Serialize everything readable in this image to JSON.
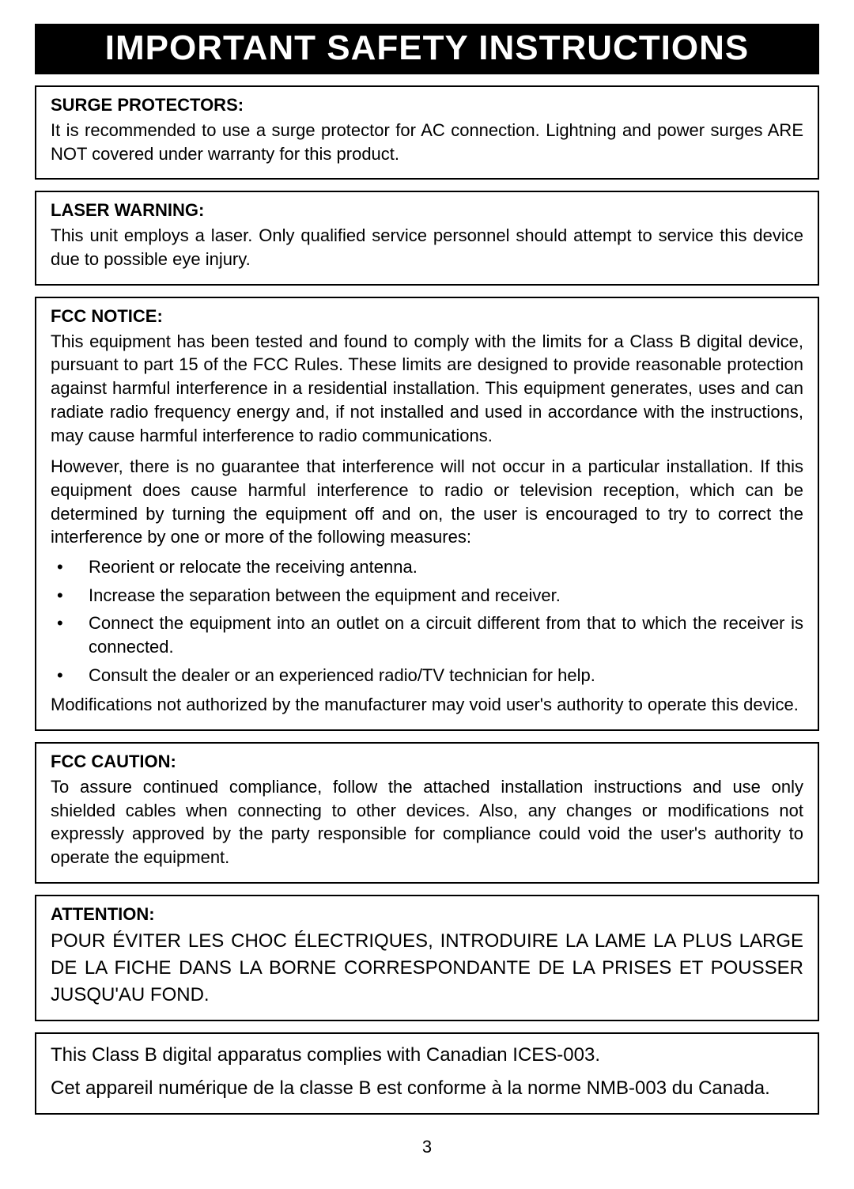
{
  "page": {
    "title": "IMPORTANT SAFETY INSTRUCTIONS",
    "page_number": "3",
    "colors": {
      "title_bg": "#000000",
      "title_fg": "#ffffff",
      "page_bg": "#ffffff",
      "text": "#000000",
      "border": "#000000"
    },
    "typography": {
      "title_fontsize_pt": 33,
      "heading_fontsize_pt": 16,
      "body_fontsize_pt": 16,
      "big_body_fontsize_pt": 18,
      "font_family": "Arial"
    }
  },
  "sections": {
    "surge": {
      "heading": "SURGE PROTECTORS:",
      "body": "It is recommended to use a surge protector for AC connection. Lightning and power surges ARE NOT covered under warranty for this product."
    },
    "laser": {
      "heading": "LASER WARNING:",
      "body": "This unit employs a laser. Only qualified service personnel should attempt to service this device due to possible eye injury."
    },
    "fcc_notice": {
      "heading": "FCC NOTICE:",
      "p1": "This equipment has been tested and found to comply with the limits for a Class B digital device, pursuant to part 15 of the FCC Rules. These limits are designed to provide reasonable protection against harmful interference in a residential installation. This equipment generates, uses and can radiate radio frequency energy and, if not installed and used in accordance with the instructions, may cause harmful interference to radio communications.",
      "p2": "However, there is no guarantee that interference will not occur in a particular installation. If this equipment does cause harmful interference to radio or television reception, which can be determined by turning the equipment off and on, the user is encouraged to try to correct the interference by one or more of the following measures:",
      "measures": [
        "Reorient or relocate the receiving antenna.",
        "Increase the separation between the equipment and receiver.",
        "Connect the equipment into an outlet on a circuit different from that to which the receiver is connected.",
        "Consult the dealer or an experienced radio/TV technician for help."
      ],
      "p3": "Modifications not authorized by the manufacturer may void user's authority to operate this device."
    },
    "fcc_caution": {
      "heading": "FCC CAUTION:",
      "body": "To assure continued compliance, follow the attached installation instructions and use only shielded cables when connecting to other devices. Also, any changes or modifications not expressly approved by the party responsible for compliance could void the user's authority to operate the equipment."
    },
    "attention_fr": {
      "heading": "ATTENTION:",
      "body": "POUR ÉVITER LES CHOC ÉLECTRIQUES, INTRODUIRE LA LAME LA PLUS LARGE DE LA FICHE DANS LA BORNE CORRESPONDANTE DE LA PRISES ET POUSSER JUSQU'AU FOND."
    },
    "ices": {
      "en": "This Class B digital apparatus complies with Canadian ICES-003.",
      "fr": "Cet appareil numérique de la classe B est conforme à la norme NMB-003 du Canada."
    }
  }
}
